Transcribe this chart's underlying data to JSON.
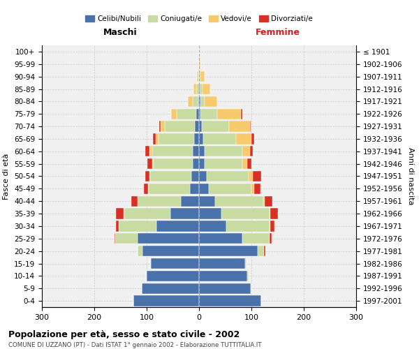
{
  "age_groups": [
    "0-4",
    "5-9",
    "10-14",
    "15-19",
    "20-24",
    "25-29",
    "30-34",
    "35-39",
    "40-44",
    "45-49",
    "50-54",
    "55-59",
    "60-64",
    "65-69",
    "70-74",
    "75-79",
    "80-84",
    "85-89",
    "90-94",
    "95-99",
    "100+"
  ],
  "birth_years": [
    "1997-2001",
    "1992-1996",
    "1987-1991",
    "1982-1986",
    "1977-1981",
    "1972-1976",
    "1967-1971",
    "1962-1966",
    "1957-1961",
    "1952-1956",
    "1947-1951",
    "1942-1946",
    "1937-1941",
    "1932-1936",
    "1927-1931",
    "1922-1926",
    "1917-1921",
    "1912-1916",
    "1907-1911",
    "1902-1906",
    "≤ 1901"
  ],
  "colors": {
    "celibi": "#4a72aa",
    "coniugati": "#c8dba0",
    "vedovi": "#f7ca6e",
    "divorziati": "#d83025"
  },
  "males": {
    "celibi": [
      125,
      110,
      100,
      92,
      108,
      118,
      82,
      55,
      35,
      18,
      15,
      12,
      12,
      10,
      8,
      5,
      2,
      1,
      0,
      0,
      0
    ],
    "coniugati": [
      0,
      0,
      2,
      2,
      10,
      42,
      72,
      88,
      82,
      78,
      78,
      75,
      78,
      68,
      58,
      38,
      10,
      5,
      2,
      0,
      0
    ],
    "vedovi": [
      0,
      0,
      0,
      0,
      0,
      0,
      0,
      1,
      1,
      1,
      2,
      2,
      5,
      5,
      8,
      10,
      10,
      5,
      2,
      0,
      0
    ],
    "divorziati": [
      0,
      0,
      0,
      0,
      0,
      2,
      5,
      15,
      12,
      8,
      8,
      10,
      8,
      5,
      2,
      0,
      0,
      0,
      0,
      0,
      0
    ]
  },
  "females": {
    "celibi": [
      118,
      98,
      92,
      88,
      112,
      82,
      52,
      42,
      30,
      18,
      15,
      10,
      10,
      8,
      5,
      3,
      2,
      1,
      0,
      0,
      0
    ],
    "coniugati": [
      0,
      2,
      2,
      2,
      12,
      52,
      82,
      92,
      92,
      82,
      80,
      72,
      72,
      62,
      52,
      32,
      8,
      5,
      2,
      0,
      0
    ],
    "vedovi": [
      0,
      0,
      0,
      0,
      0,
      0,
      2,
      2,
      3,
      5,
      8,
      10,
      15,
      30,
      40,
      45,
      25,
      15,
      8,
      2,
      0
    ],
    "divorziati": [
      0,
      0,
      0,
      0,
      2,
      5,
      8,
      15,
      15,
      12,
      15,
      8,
      5,
      5,
      2,
      2,
      0,
      0,
      0,
      0,
      0
    ]
  },
  "xlim": 300,
  "title": "Popolazione per età, sesso e stato civile - 2002",
  "subtitle": "COMUNE DI UZZANO (PT) - Dati ISTAT 1° gennaio 2002 - Elaborazione TUTTITALIA.IT",
  "ylabel_left": "Fasce di età",
  "ylabel_right": "Anni di nascita",
  "xlabel_left": "Maschi",
  "xlabel_right": "Femmine",
  "legend_labels": [
    "Celibi/Nubili",
    "Coniugati/e",
    "Vedovi/e",
    "Divorziati/e"
  ],
  "background_color": "#ffffff",
  "plot_bg_color": "#f0f0f0",
  "grid_color": "#cccccc"
}
